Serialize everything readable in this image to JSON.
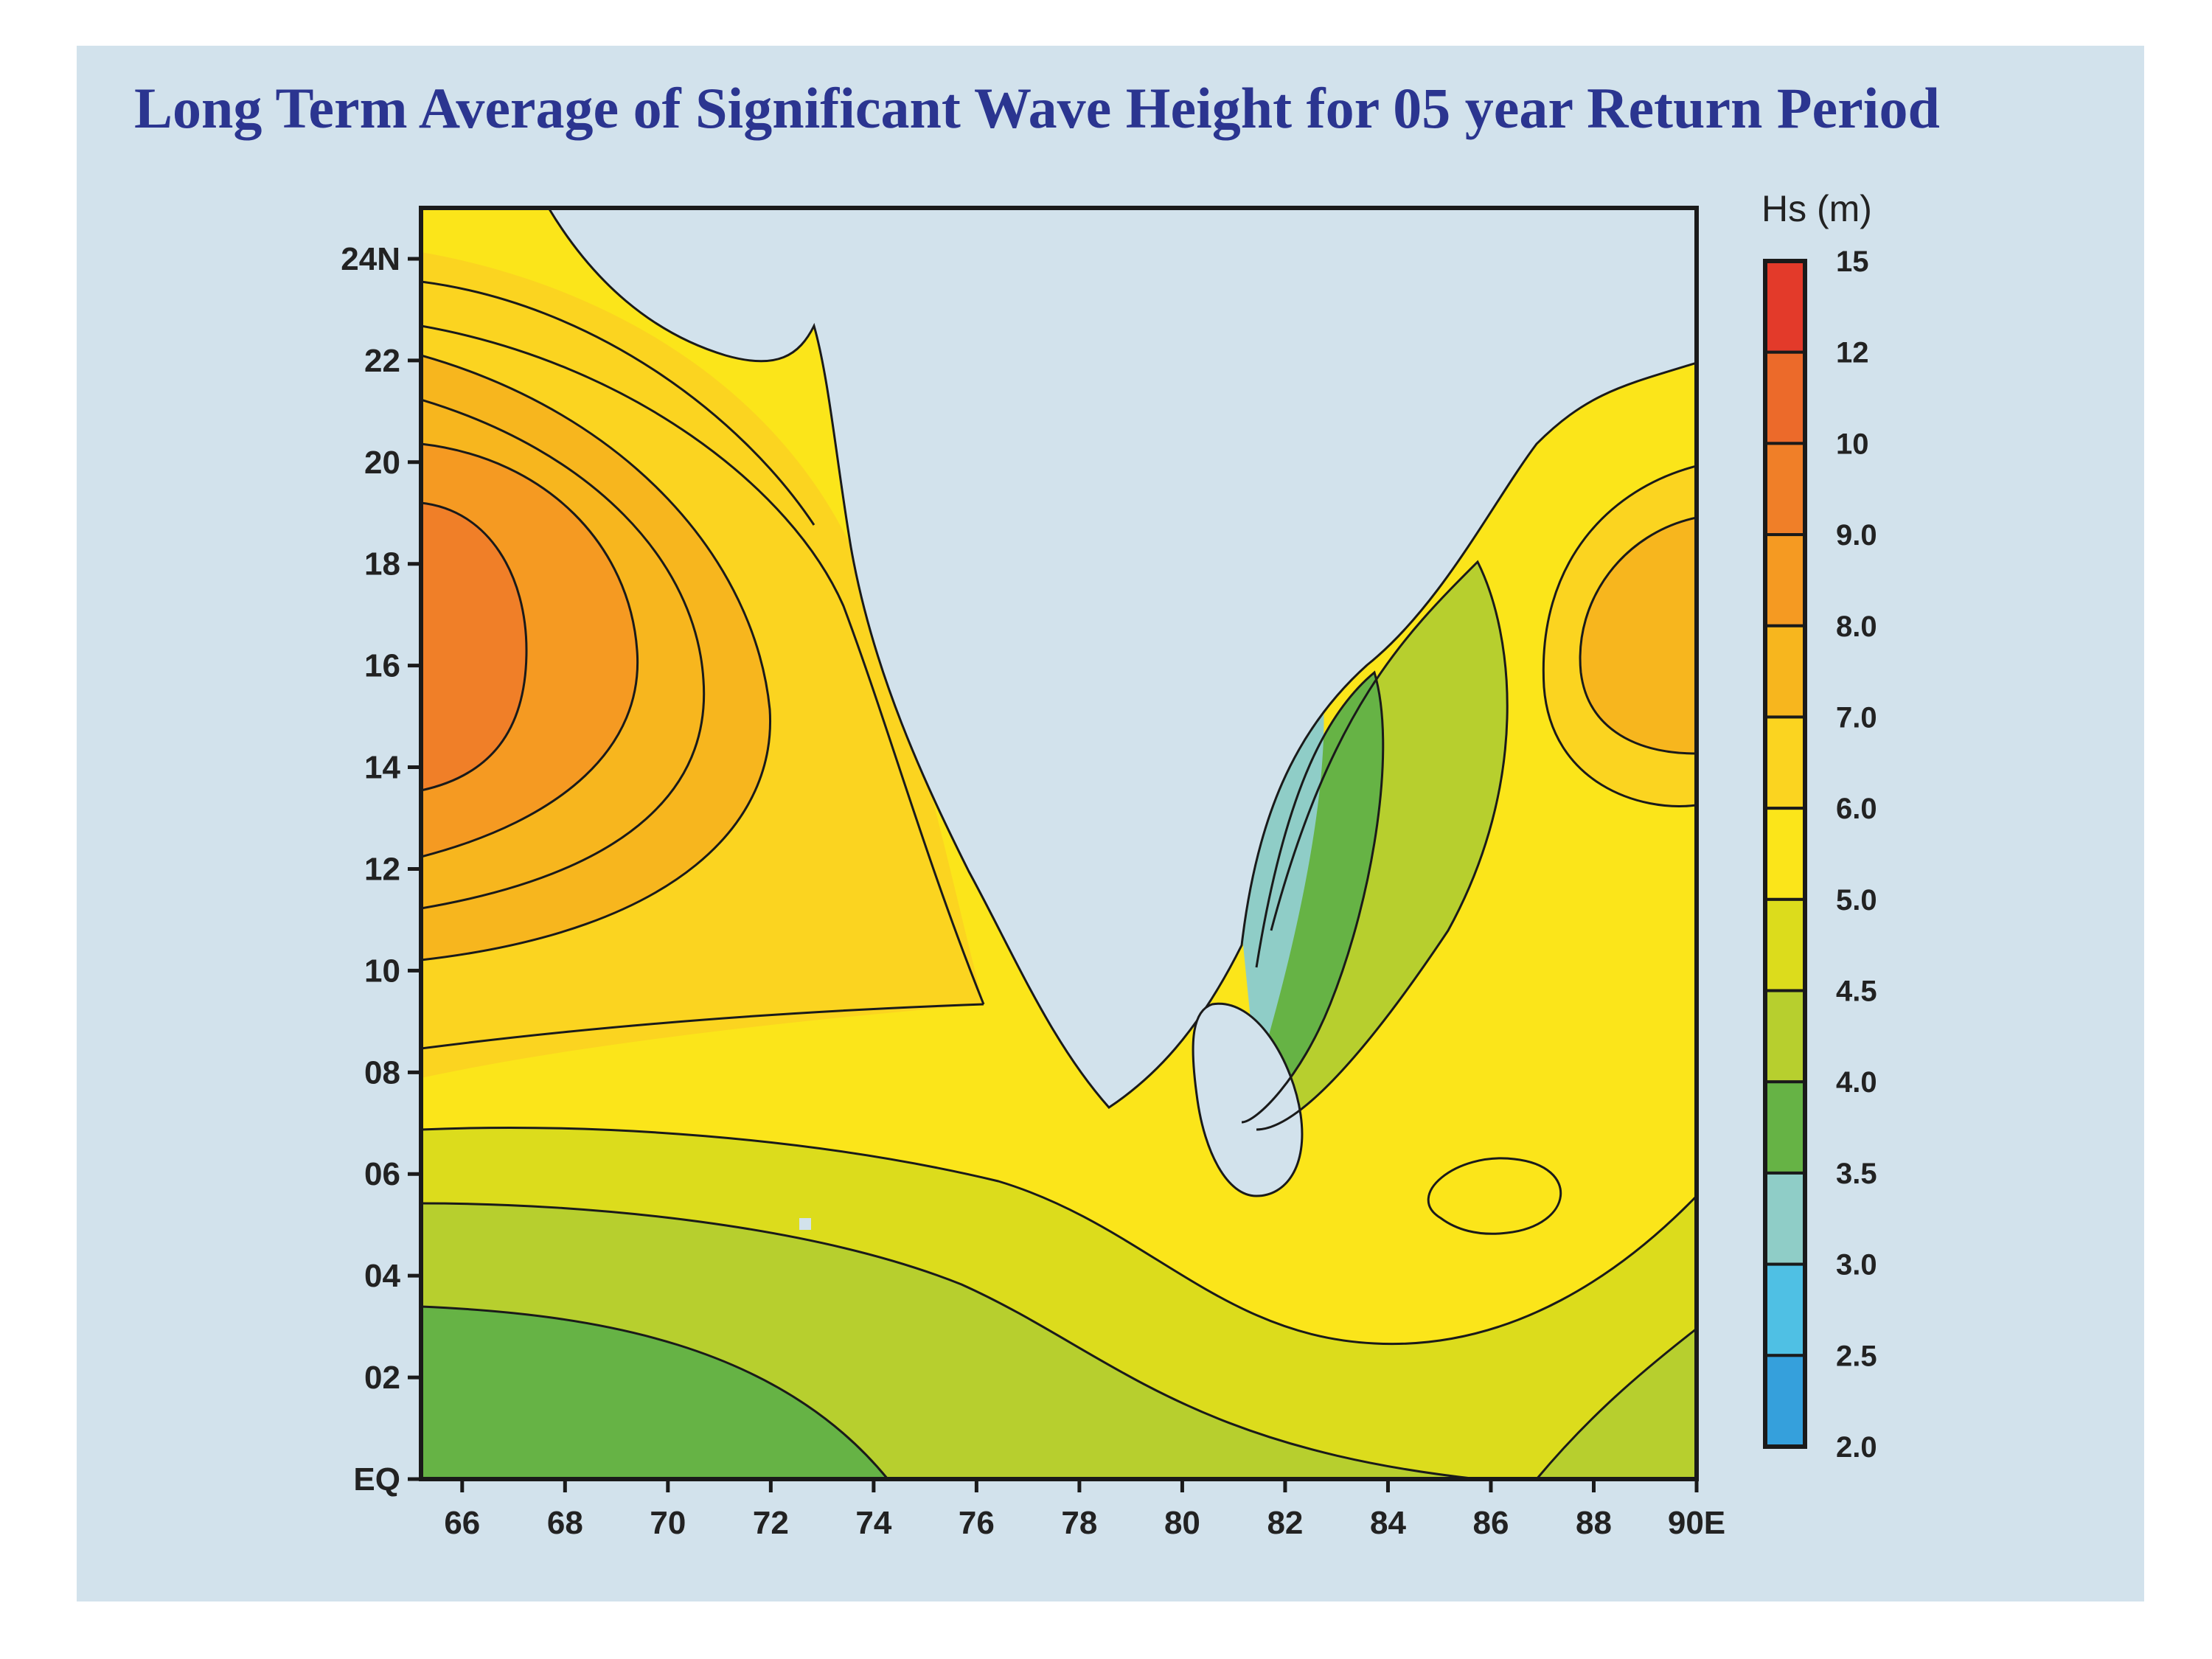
{
  "title": "Long Term Average of Significant Wave Height for 05 year Return Period",
  "map": {
    "region": "Indian seas (Arabian Sea, Bay of Bengal)",
    "latitude_labels": [
      "24N",
      "22",
      "20",
      "18",
      "16",
      "14",
      "12",
      "10",
      "08",
      "06",
      "04",
      "02",
      "EQ"
    ],
    "latitude_values": [
      24,
      22,
      20,
      18,
      16,
      14,
      12,
      10,
      8,
      6,
      4,
      2,
      0
    ],
    "longitude_labels": [
      "66",
      "68",
      "70",
      "72",
      "74",
      "76",
      "78",
      "80",
      "82",
      "84",
      "86",
      "88",
      "90E"
    ],
    "longitude_values": [
      66,
      68,
      70,
      72,
      74,
      76,
      78,
      80,
      82,
      84,
      86,
      88,
      90
    ],
    "lon_range": [
      65.2,
      90
    ],
    "lat_range": [
      0,
      25
    ],
    "land_color": "#d2e2ec",
    "contour_color": "#1a1a1a"
  },
  "colorbar": {
    "title": "Hs (m)",
    "labels": [
      "15",
      "12",
      "10",
      "9.0",
      "8.0",
      "7.0",
      "6.0",
      "5.0",
      "4.5",
      "4.0",
      "3.5",
      "3.0",
      "2.5",
      "2.0"
    ],
    "colors": [
      "#e33a2a",
      "#ec6a2a",
      "#f07f28",
      "#f59a22",
      "#f7b61e",
      "#fbd420",
      "#fbe51a",
      "#dcdc1c",
      "#b7cf2e",
      "#66b345",
      "#8fcdc7",
      "#4fc0e4",
      "#35a0dc"
    ]
  }
}
